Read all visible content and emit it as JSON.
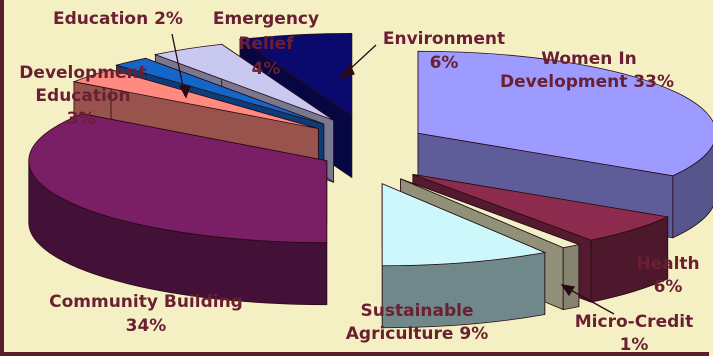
{
  "chart_data": {
    "type": "pie",
    "title": "",
    "slices": [
      {
        "label": "Women In Development",
        "value": 33,
        "pct": "33%",
        "color": "#9d9bff"
      },
      {
        "label": "Health",
        "value": 6,
        "pct": "6%",
        "color": "#8c2b4e"
      },
      {
        "label": "Micro-Credit",
        "value": 1,
        "pct": "1%",
        "color": "#f2f0c8"
      },
      {
        "label": "Sustainable Agriculture",
        "value": 9,
        "pct": "9%",
        "color": "#cdf8fb"
      },
      {
        "label": "Community Building",
        "value": 34,
        "pct": "34%",
        "color": "#7a1f66"
      },
      {
        "label": "Development Education",
        "value": 3,
        "pct": "3%",
        "color": "#ff8a80"
      },
      {
        "label": "Education",
        "value": 2,
        "pct": "2%",
        "color": "#1466c8"
      },
      {
        "label": "Emergency Relief",
        "value": 4,
        "pct": "4%",
        "color": "#c8c8f0"
      },
      {
        "label": "Environment",
        "value": 6,
        "pct": "6%",
        "color": "#0a0a6e"
      }
    ]
  },
  "labels": {
    "women": [
      "Women In",
      "Development 33%"
    ],
    "health": [
      "Health",
      "6%"
    ],
    "micro": [
      "Micro-Credit",
      "1%"
    ],
    "agri": [
      "Sustainable",
      "Agriculture 9%"
    ],
    "community": [
      "Community Building",
      "34%"
    ],
    "dev_edu": [
      "Development",
      "Education",
      "3%"
    ],
    "education": [
      "Education 2%"
    ],
    "emergency": [
      "Emergency",
      "Relief",
      "4%"
    ],
    "environment": [
      "Environment",
      "6%"
    ]
  }
}
